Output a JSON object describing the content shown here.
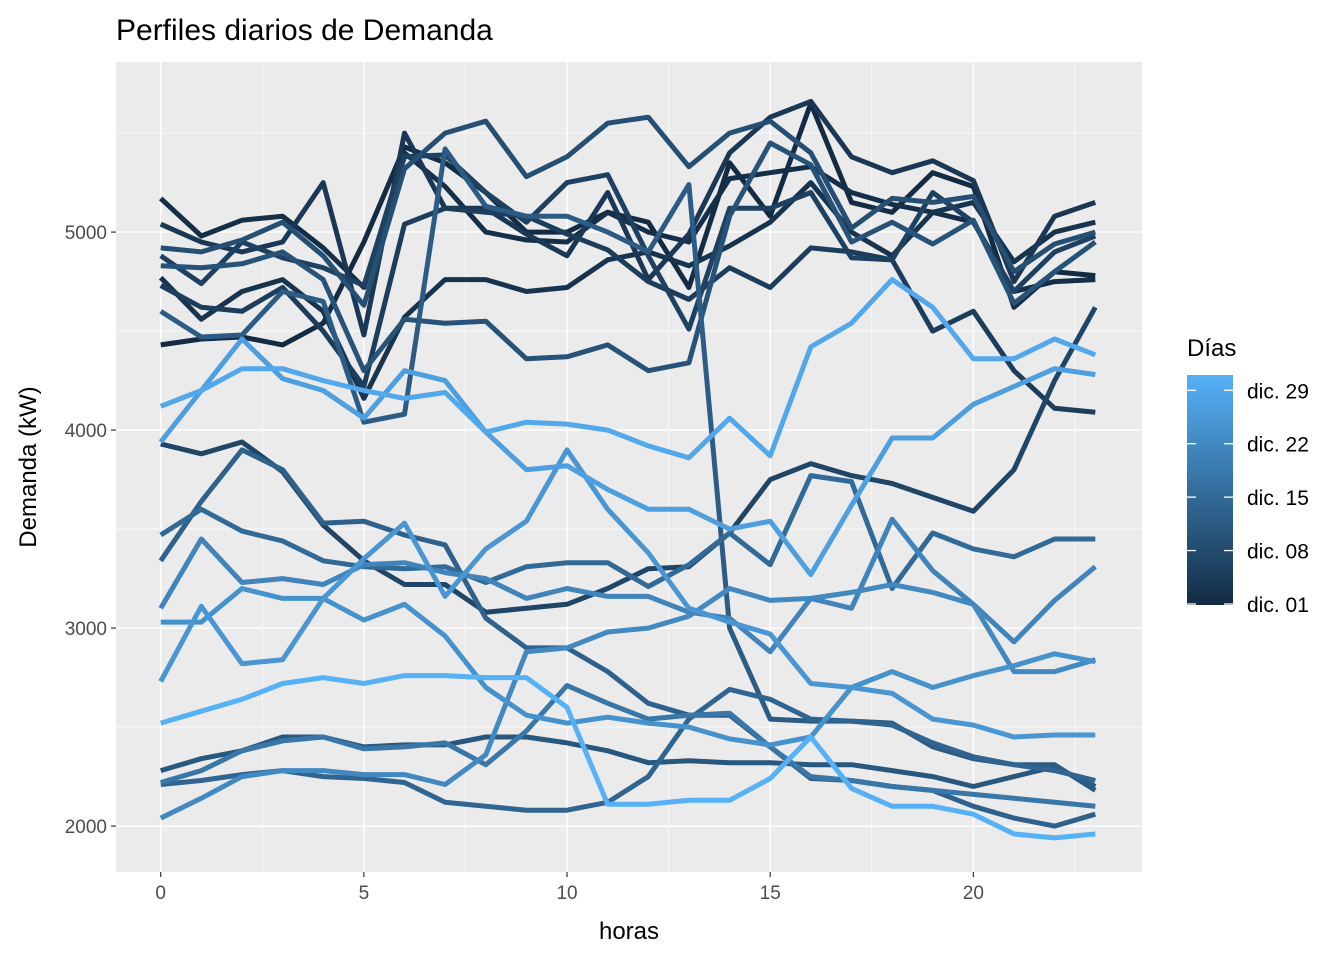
{
  "chart_data": {
    "type": "line",
    "title": "Perfiles diarios de Demanda",
    "xlabel": "horas",
    "ylabel": "Demanda (kW)",
    "xlim": [
      -1.1,
      24.15
    ],
    "ylim": [
      1768,
      5859
    ],
    "xticks": [
      0,
      5,
      10,
      15,
      20
    ],
    "yticks": [
      2000,
      3000,
      4000,
      5000
    ],
    "grid": true,
    "legend": {
      "title": "Días",
      "placement": "right",
      "type": "colorbar",
      "range": [
        1,
        31
      ],
      "low_color": "#132B43",
      "high_color": "#56B1F7",
      "ticks": [
        {
          "day": 1,
          "label": "dic. 01"
        },
        {
          "day": 8,
          "label": "dic. 08"
        },
        {
          "day": 15,
          "label": "dic. 15"
        },
        {
          "day": 22,
          "label": "dic. 22"
        },
        {
          "day": 29,
          "label": "dic. 29"
        }
      ]
    },
    "x": [
      0,
      1,
      2,
      3,
      4,
      5,
      6,
      7,
      8,
      9,
      10,
      11,
      12,
      13,
      14,
      15,
      16,
      17,
      18,
      19,
      20,
      21,
      22,
      23
    ],
    "series": [
      {
        "day": 1,
        "values": [
          4430,
          4460,
          4470,
          4430,
          4540,
          4950,
          5430,
          5350,
          5200,
          5000,
          5000,
          5100,
          5050,
          4720,
          5350,
          5080,
          5650,
          5150,
          5100,
          5300,
          5230,
          4620,
          4800,
          4780
        ]
      },
      {
        "day": 2,
        "values": [
          5170,
          4980,
          5060,
          5080,
          4920,
          4720,
          5400,
          5230,
          5000,
          4960,
          4950,
          5100,
          5000,
          4950,
          5270,
          5300,
          5330,
          5200,
          5140,
          5100,
          5050,
          4700,
          4750,
          4760
        ]
      },
      {
        "day": 3,
        "values": [
          4770,
          4560,
          4700,
          4760,
          4600,
          4160,
          4570,
          4760,
          4760,
          4700,
          4720,
          4860,
          4900,
          4830,
          4930,
          5050,
          5250,
          5000,
          4880,
          5100,
          5150,
          4850,
          5000,
          5050
        ]
      },
      {
        "day": 4,
        "values": [
          5040,
          4950,
          4900,
          4950,
          5250,
          4480,
          5500,
          5120,
          5120,
          4990,
          4880,
          5200,
          4760,
          4990,
          5400,
          5580,
          5660,
          5380,
          5300,
          5360,
          5260,
          4750,
          5080,
          5150
        ]
      },
      {
        "day": 5,
        "values": [
          4730,
          4620,
          4600,
          4720,
          4500,
          4220,
          5040,
          5120,
          5100,
          5080,
          4990,
          4910,
          4750,
          4660,
          4820,
          4720,
          4920,
          4900,
          4860,
          4500,
          4600,
          4300,
          4110,
          4090
        ]
      },
      {
        "day": 6,
        "values": [
          4880,
          4740,
          4950,
          4870,
          4820,
          4730,
          5380,
          5390,
          5200,
          5050,
          5250,
          5290,
          4880,
          4510,
          5120,
          5120,
          5200,
          4870,
          4860,
          5200,
          5050,
          4700,
          4900,
          4980
        ]
      },
      {
        "day": 7,
        "values": [
          3930,
          3880,
          3940,
          3790,
          3520,
          3340,
          3220,
          3220,
          3080,
          3100,
          3120,
          3200,
          3300,
          3310,
          3480,
          3750,
          3830,
          3770,
          3730,
          3660,
          3590,
          3800,
          4250,
          4620
        ]
      },
      {
        "day": 9,
        "values": [
          4920,
          4900,
          4960,
          5050,
          4880,
          4630,
          5320,
          5500,
          5560,
          5280,
          5380,
          5550,
          5580,
          5330,
          5500,
          5560,
          5400,
          5020,
          5170,
          5150,
          5180,
          4800,
          4940,
          5000
        ]
      },
      {
        "day": 10,
        "values": [
          4830,
          4820,
          4840,
          4900,
          4760,
          4300,
          4560,
          4540,
          4550,
          4360,
          4370,
          4430,
          4300,
          4340,
          5080,
          5450,
          5340,
          4950,
          5050,
          4940,
          5060,
          4640,
          4800,
          4950
        ]
      },
      {
        "day": 11,
        "values": [
          2280,
          2340,
          2380,
          2450,
          2450,
          2400,
          2410,
          2410,
          2450,
          2450,
          2420,
          2380,
          2320,
          2330,
          2320,
          2320,
          2310,
          2310,
          2280,
          2250,
          2200,
          2250,
          2300,
          2200
        ]
      },
      {
        "day": 12,
        "values": [
          4600,
          4470,
          4480,
          4700,
          4650,
          4040,
          4080,
          5420,
          5130,
          5080,
          5080,
          5000,
          4900,
          5240,
          3000,
          2540,
          2530,
          2530,
          2520,
          2400,
          2340,
          2310,
          2310,
          2180
        ]
      },
      {
        "day": 13,
        "values": [
          3340,
          3640,
          3900,
          3800,
          3530,
          3540,
          3470,
          3420,
          3050,
          2900,
          2900,
          2780,
          2620,
          2560,
          2560,
          2400,
          2240,
          2230,
          2200,
          2180,
          2100,
          2040,
          2000,
          2060
        ]
      },
      {
        "day": 14,
        "values": [
          2210,
          2230,
          2260,
          2280,
          2250,
          2240,
          2220,
          2120,
          2100,
          2080,
          2080,
          2120,
          2250,
          2540,
          2690,
          2640,
          2540,
          2530,
          2510,
          2420,
          2350,
          2310,
          2280,
          2230
        ]
      },
      {
        "day": 15,
        "values": [
          3470,
          3600,
          3490,
          3440,
          3340,
          3310,
          3300,
          3310,
          3230,
          3310,
          3330,
          3330,
          3210,
          3320,
          3480,
          3320,
          3770,
          3740,
          3200,
          3480,
          3400,
          3360,
          3450,
          3450
        ]
      },
      {
        "day": 18,
        "values": [
          2220,
          2280,
          2380,
          2430,
          2450,
          2390,
          2400,
          2420,
          2310,
          2480,
          2710,
          2620,
          2540,
          2560,
          2570,
          2400,
          2250,
          2230,
          2200,
          2180,
          2160,
          2140,
          2120,
          2100
        ]
      },
      {
        "day": 21,
        "values": [
          3100,
          3450,
          3230,
          3250,
          3220,
          3320,
          3330,
          3280,
          3250,
          3150,
          3200,
          3160,
          3160,
          3080,
          3050,
          2880,
          3150,
          3100,
          3550,
          3290,
          3120,
          2930,
          3140,
          3310
        ]
      },
      {
        "day": 22,
        "values": [
          2040,
          2140,
          2250,
          2280,
          2280,
          2260,
          2260,
          2210,
          2360,
          2880,
          2900,
          2980,
          3000,
          3060,
          3200,
          3140,
          3150,
          3180,
          3220,
          3180,
          3120,
          2780,
          2780,
          2840
        ]
      },
      {
        "day": 24,
        "values": [
          3030,
          3030,
          3200,
          3150,
          3150,
          3040,
          3120,
          2960,
          2700,
          2560,
          2520,
          2550,
          2520,
          2500,
          2440,
          2410,
          2450,
          2700,
          2780,
          2700,
          2760,
          2810,
          2870,
          2830
        ]
      },
      {
        "day": 25,
        "values": [
          2730,
          3110,
          2820,
          2840,
          3150,
          3350,
          3530,
          3160,
          3400,
          3540,
          3900,
          3600,
          3380,
          3100,
          3030,
          2970,
          2720,
          2700,
          2670,
          2540,
          2510,
          2450,
          2460,
          2460
        ]
      },
      {
        "day": 27,
        "values": [
          3940,
          4200,
          4460,
          4260,
          4200,
          4060,
          4300,
          4250,
          3990,
          3800,
          3820,
          3700,
          3600,
          3600,
          3500,
          3540,
          3270,
          3620,
          3960,
          3960,
          4130,
          4220,
          4310,
          4280
        ]
      },
      {
        "day": 29,
        "values": [
          4120,
          4200,
          4310,
          4310,
          4250,
          4200,
          4160,
          4190,
          3990,
          4040,
          4030,
          4000,
          3920,
          3860,
          4060,
          3870,
          4420,
          4540,
          4760,
          4620,
          4360,
          4360,
          4460,
          4380
        ]
      },
      {
        "day": 31,
        "values": [
          2520,
          2580,
          2640,
          2720,
          2750,
          2720,
          2760,
          2760,
          2750,
          2750,
          2600,
          2110,
          2110,
          2130,
          2130,
          2240,
          2450,
          2190,
          2100,
          2100,
          2060,
          1960,
          1940,
          1960
        ]
      }
    ]
  }
}
